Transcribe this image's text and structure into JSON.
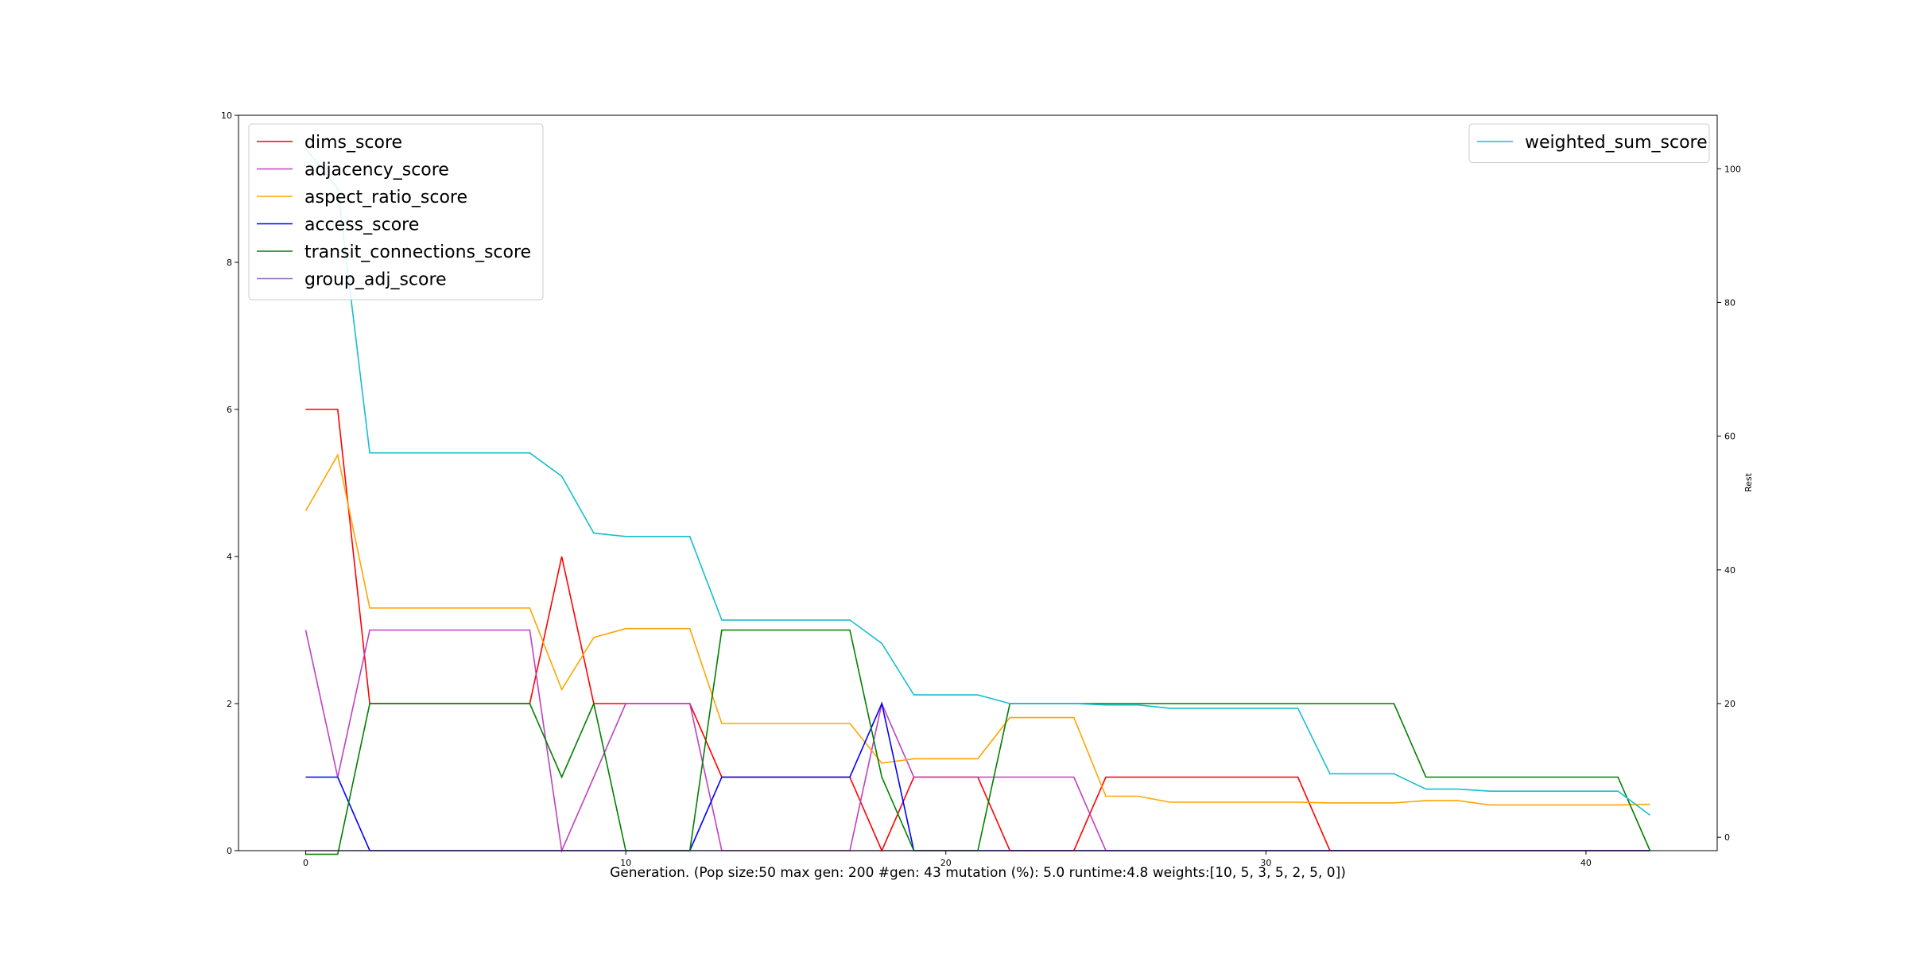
{
  "chart_data": {
    "type": "line",
    "xlabel": "Generation. (Pop size:50 max gen: 200 #gen: 43 mutation (%): 5.0 runtime:4.8 weights:[10, 5, 3, 5, 2, 5, 0])",
    "ylabel_right": "Rest",
    "xlim": [
      -2.1,
      44.1
    ],
    "ylim_left": [
      0,
      10
    ],
    "ylim_right": [
      -2,
      108
    ],
    "xticks": [
      0,
      10,
      20,
      30,
      40
    ],
    "yticks_left": [
      0,
      2,
      4,
      6,
      8,
      10
    ],
    "yticks_right": [
      0,
      20,
      40,
      60,
      80,
      100
    ],
    "grid": false,
    "legend_left": "upper left",
    "legend_right": "upper right",
    "x": [
      0,
      1,
      2,
      3,
      4,
      5,
      6,
      7,
      8,
      9,
      10,
      11,
      12,
      13,
      14,
      15,
      16,
      17,
      18,
      19,
      20,
      21,
      22,
      23,
      24,
      25,
      26,
      27,
      28,
      29,
      30,
      31,
      32,
      33,
      34,
      35,
      36,
      37,
      38,
      39,
      40,
      41,
      42
    ],
    "series": [
      {
        "name": "dims_score",
        "axis": "left",
        "color": "#ff0000",
        "values": [
          6,
          6,
          2,
          2,
          2,
          2,
          2,
          2,
          4,
          2,
          2,
          2,
          2,
          1,
          1,
          1,
          1,
          1,
          0,
          1,
          1,
          1,
          0,
          0,
          0,
          1,
          1,
          1,
          1,
          1,
          1,
          1,
          0,
          0,
          0,
          0,
          0,
          0,
          0,
          0,
          0,
          0,
          0
        ]
      },
      {
        "name": "adjacency_score",
        "axis": "left",
        "color": "#bf40bf",
        "values": [
          3,
          1,
          3,
          3,
          3,
          3,
          3,
          3,
          0,
          1,
          2,
          2,
          2,
          0,
          0,
          0,
          0,
          0,
          2,
          1,
          1,
          1,
          1,
          1,
          1,
          0,
          0,
          0,
          0,
          0,
          0,
          0,
          0,
          0,
          0,
          0,
          0,
          0,
          0,
          0,
          0,
          0,
          0
        ]
      },
      {
        "name": "aspect_ratio_score",
        "axis": "left",
        "color": "#ffa500",
        "values": [
          4.62,
          5.38,
          3.3,
          3.3,
          3.3,
          3.3,
          3.3,
          3.3,
          2.19,
          2.9,
          3.02,
          3.02,
          3.02,
          1.73,
          1.73,
          1.73,
          1.73,
          1.73,
          1.19,
          1.25,
          1.25,
          1.25,
          1.81,
          1.81,
          1.81,
          0.74,
          0.74,
          0.66,
          0.66,
          0.66,
          0.66,
          0.66,
          0.65,
          0.65,
          0.65,
          0.68,
          0.68,
          0.62,
          0.62,
          0.62,
          0.62,
          0.62,
          0.63
        ]
      },
      {
        "name": "access_score",
        "axis": "left",
        "color": "#0000ff",
        "values": [
          1,
          1,
          0,
          0,
          0,
          0,
          0,
          0,
          0,
          0,
          0,
          0,
          0,
          1,
          1,
          1,
          1,
          1,
          2,
          0,
          0,
          0,
          0,
          0,
          0,
          0,
          0,
          0,
          0,
          0,
          0,
          0,
          0,
          0,
          0,
          0,
          0,
          0,
          0,
          0,
          0,
          0,
          0
        ]
      },
      {
        "name": "transit_connections_score",
        "axis": "left",
        "color": "#008000",
        "values": [
          -0.05,
          -0.05,
          2,
          2,
          2,
          2,
          2,
          2,
          1,
          2,
          0,
          0,
          0,
          3,
          3,
          3,
          3,
          3,
          1,
          0,
          0,
          0,
          2,
          2,
          2,
          2,
          2,
          2,
          2,
          2,
          2,
          2,
          2,
          2,
          2,
          1,
          1,
          1,
          1,
          1,
          1,
          1,
          0
        ]
      },
      {
        "name": "group_adj_score",
        "axis": "left",
        "color": "#9467bd",
        "values": [
          0,
          0,
          0,
          0,
          0,
          0,
          0,
          0,
          0,
          0,
          0,
          0,
          0,
          0,
          0,
          0,
          0,
          0,
          0,
          0,
          0,
          0,
          0,
          0,
          0,
          0,
          0,
          0,
          0,
          0,
          0,
          0,
          0,
          0,
          0,
          0,
          0,
          0,
          0,
          0,
          0,
          0,
          0
        ]
      },
      {
        "name": "weighted_sum_score",
        "axis": "right",
        "color": "#17becf",
        "values": [
          103,
          97,
          57.5,
          57.5,
          57.5,
          57.5,
          57.5,
          57.5,
          54,
          45.5,
          45,
          45,
          45,
          32.5,
          32.5,
          32.5,
          32.5,
          32.5,
          29,
          21.3,
          21.3,
          21.3,
          20,
          20,
          20,
          19.8,
          19.8,
          19.3,
          19.3,
          19.3,
          19.3,
          19.3,
          9.5,
          9.5,
          9.5,
          7.2,
          7.2,
          6.9,
          6.9,
          6.9,
          6.9,
          6.9,
          3.3
        ]
      }
    ]
  }
}
